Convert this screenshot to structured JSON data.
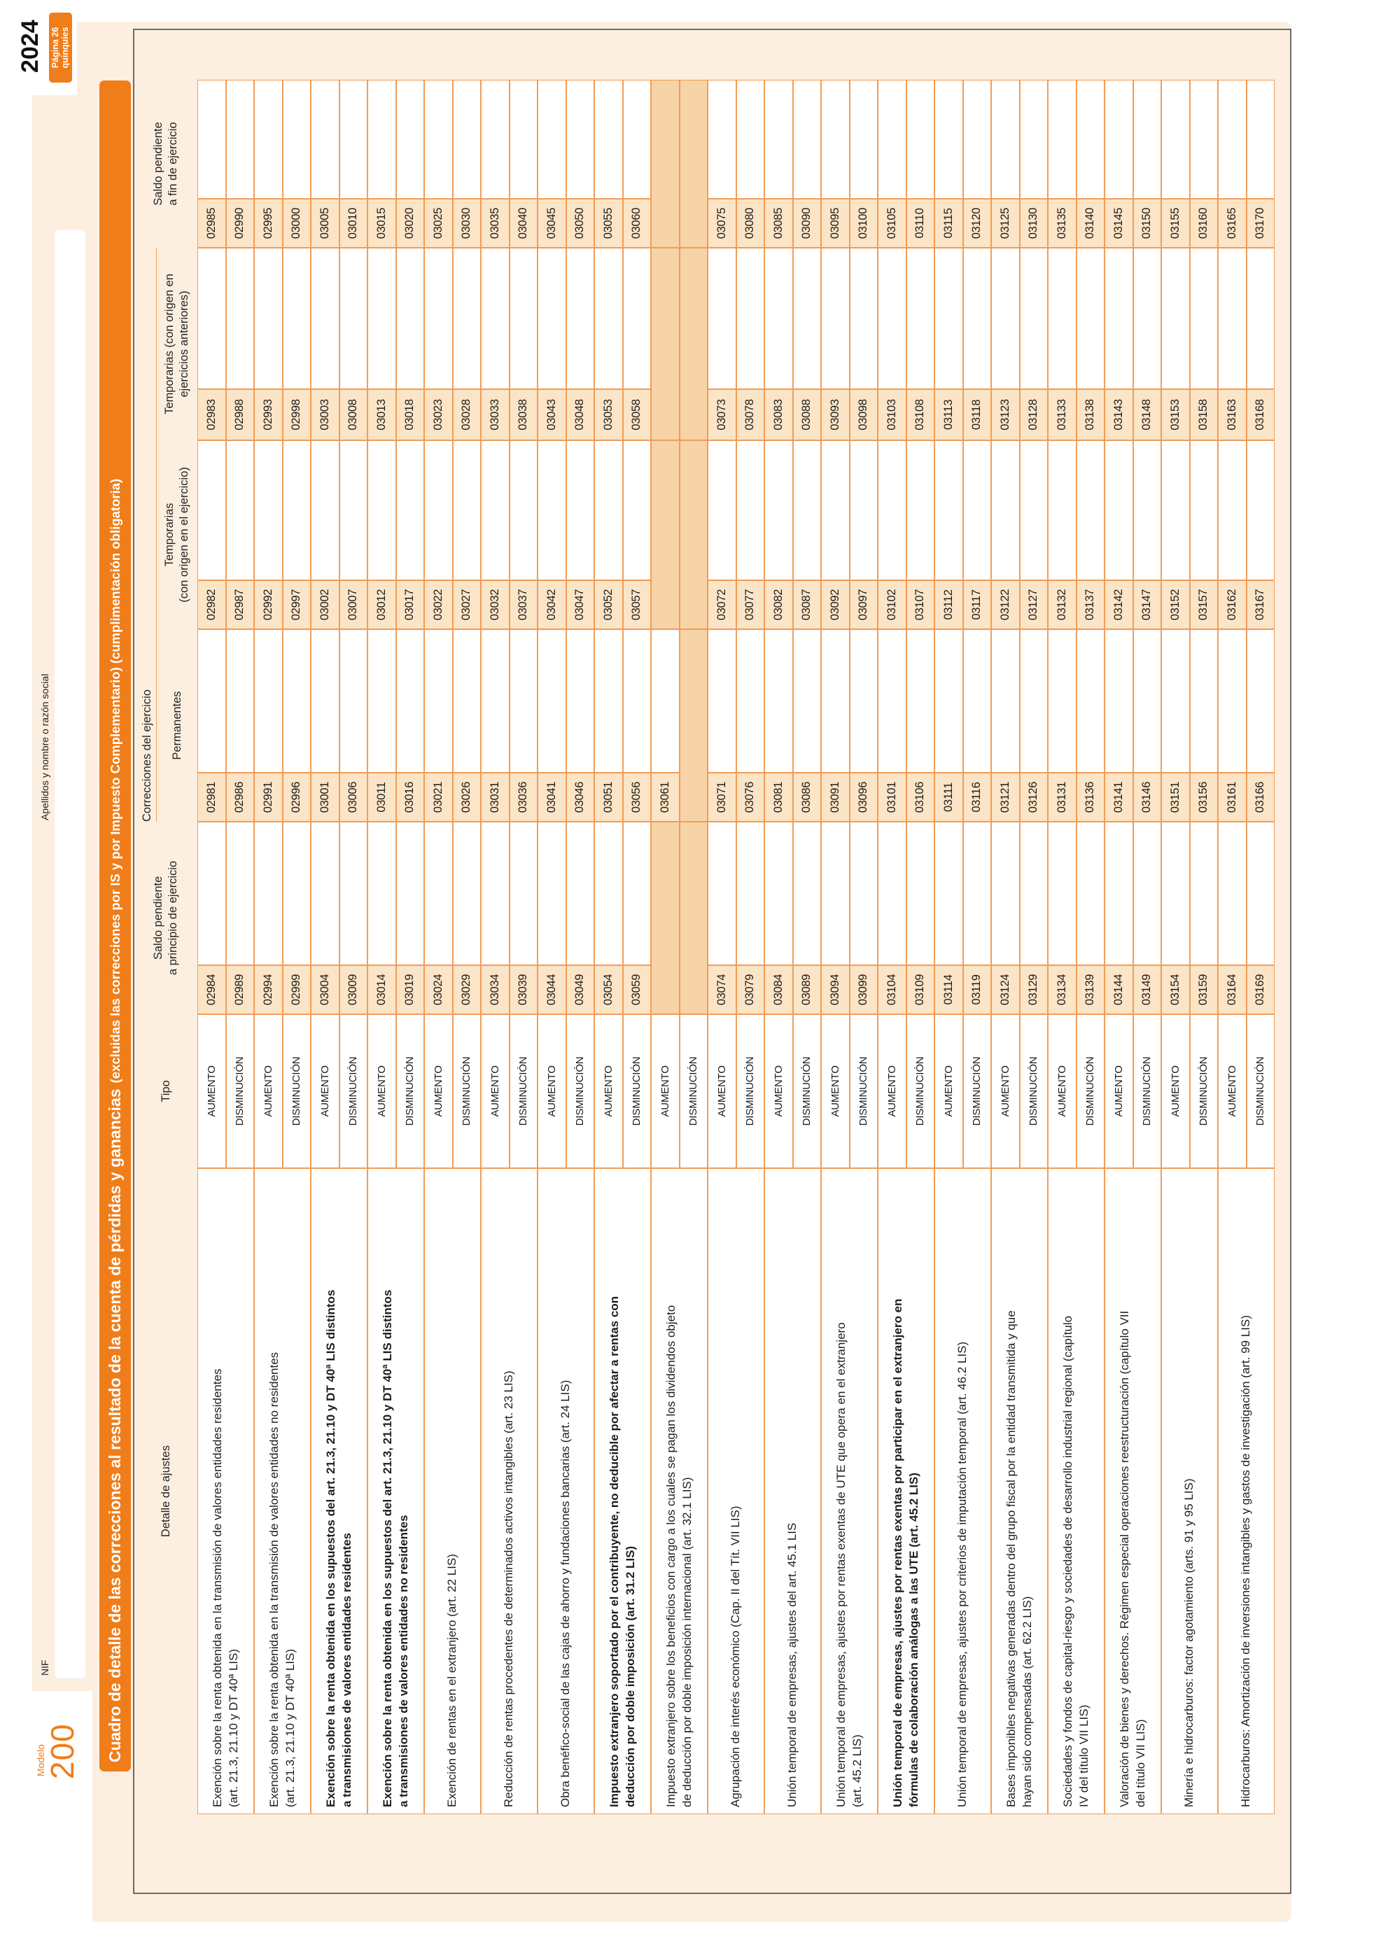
{
  "page": {
    "model_label": "Modelo",
    "model_number": "200",
    "year": "2024",
    "page_badge": "Página 26 quinquies",
    "nif_label": "NIF",
    "name_label": "Apellidos y nombre o razón social"
  },
  "title": {
    "main": "Cuadro de detalle de las correcciones al resultado de la cuenta de pérdidas y ganancias",
    "note": "(excluidas las correcciones por IS y por Impuesto Complementario) (cumplimentación obligatoria)"
  },
  "colors": {
    "accent": "#EF7D1A",
    "grid_line": "#F29C55",
    "panel_cream": "#FCEFE0",
    "code_box_fill": "#FCE4C6",
    "disabled_cell_fill": "#F7D3A8"
  },
  "table": {
    "headers": {
      "detail": "Detalle de ajustes",
      "tipo": "Tipo",
      "saldo_inicio": [
        "Saldo pendiente",
        "a principio de ejercicio"
      ],
      "correcciones_grupo": "Correcciones del ejercicio",
      "permanentes": "Permanentes",
      "temporarias_ejercicio": [
        "Temporarias",
        "(con origen en el ejercicio)"
      ],
      "temporarias_anteriores": [
        "Temporarias (con origen en",
        "ejercicios anteriores)"
      ],
      "saldo_fin": [
        "Saldo pendiente",
        "a fin de ejercicio"
      ]
    },
    "tipo_values": {
      "aumento": "AUMENTO",
      "disminucion": "DISMINUCIÓN"
    },
    "concepts": [
      {
        "label": [
          "Exención sobre la renta obtenida en la transmisión de valores entidades residentes",
          "(art. 21.3, 21.10 y DT 40ª LIS)"
        ],
        "bold": false,
        "aumento": {
          "perm": "02981",
          "temp_ej": "02982",
          "temp_ant": "02983",
          "saldo_ini": "02984",
          "saldo_fin": "02985"
        },
        "disminucion": {
          "perm": "02986",
          "temp_ej": "02987",
          "temp_ant": "02988",
          "saldo_ini": "02989",
          "saldo_fin": "02990"
        }
      },
      {
        "label": [
          "Exención sobre la renta obtenida en la transmisión de valores entidades no residentes",
          "(art. 21.3, 21.10 y DT 40ª LIS)"
        ],
        "bold": false,
        "aumento": {
          "perm": "02991",
          "temp_ej": "02992",
          "temp_ant": "02993",
          "saldo_ini": "02994",
          "saldo_fin": "02995"
        },
        "disminucion": {
          "perm": "02996",
          "temp_ej": "02997",
          "temp_ant": "02998",
          "saldo_ini": "02999",
          "saldo_fin": "03000"
        }
      },
      {
        "label": [
          "Exención sobre la renta obtenida en los supuestos del art. 21.3, 21.10 y DT 40ª LIS distintos",
          "a transmisiones de valores entidades residentes"
        ],
        "bold": true,
        "aumento": {
          "perm": "03001",
          "temp_ej": "03002",
          "temp_ant": "03003",
          "saldo_ini": "03004",
          "saldo_fin": "03005"
        },
        "disminucion": {
          "perm": "03006",
          "temp_ej": "03007",
          "temp_ant": "03008",
          "saldo_ini": "03009",
          "saldo_fin": "03010"
        }
      },
      {
        "label": [
          "Exención sobre la renta obtenida en los supuestos del art. 21.3, 21.10 y DT 40ª LIS distintos",
          "a transmisiones de valores entidades no residentes"
        ],
        "bold": true,
        "aumento": {
          "perm": "03011",
          "temp_ej": "03012",
          "temp_ant": "03013",
          "saldo_ini": "03014",
          "saldo_fin": "03015"
        },
        "disminucion": {
          "perm": "03016",
          "temp_ej": "03017",
          "temp_ant": "03018",
          "saldo_ini": "03019",
          "saldo_fin": "03020"
        }
      },
      {
        "label": [
          "Exención de rentas en el extranjero (art. 22 LIS)"
        ],
        "bold": false,
        "aumento": {
          "perm": "03021",
          "temp_ej": "03022",
          "temp_ant": "03023",
          "saldo_ini": "03024",
          "saldo_fin": "03025"
        },
        "disminucion": {
          "perm": "03026",
          "temp_ej": "03027",
          "temp_ant": "03028",
          "saldo_ini": "03029",
          "saldo_fin": "03030"
        }
      },
      {
        "label": [
          "Reducción de rentas procedentes de determinados activos intangibles (art. 23 LIS)"
        ],
        "bold": false,
        "aumento": {
          "perm": "03031",
          "temp_ej": "03032",
          "temp_ant": "03033",
          "saldo_ini": "03034",
          "saldo_fin": "03035"
        },
        "disminucion": {
          "perm": "03036",
          "temp_ej": "03037",
          "temp_ant": "03038",
          "saldo_ini": "03039",
          "saldo_fin": "03040"
        }
      },
      {
        "label": [
          "Obra benéfico-social de las cajas de ahorro y fundaciones bancarias (art. 24 LIS)"
        ],
        "bold": false,
        "aumento": {
          "perm": "03041",
          "temp_ej": "03042",
          "temp_ant": "03043",
          "saldo_ini": "03044",
          "saldo_fin": "03045"
        },
        "disminucion": {
          "perm": "03046",
          "temp_ej": "03047",
          "temp_ant": "03048",
          "saldo_ini": "03049",
          "saldo_fin": "03050"
        }
      },
      {
        "label": [
          "Impuesto extranjero soportado por el contribuyente, no deducible por afectar a rentas con",
          "deducción por doble imposición (art. 31.2 LIS)"
        ],
        "bold": true,
        "aumento": {
          "perm": "03051",
          "temp_ej": "03052",
          "temp_ant": "03053",
          "saldo_ini": "03054",
          "saldo_fin": "03055"
        },
        "disminucion": {
          "perm": "03056",
          "temp_ej": "03057",
          "temp_ant": "03058",
          "saldo_ini": "03059",
          "saldo_fin": "03060"
        }
      },
      {
        "label": [
          "Impuesto extranjero sobre los beneficios con cargo a los cuales se pagan los dividendos objeto",
          "de deducción por doble imposición internacional (art. 32.1 LIS)"
        ],
        "bold": false,
        "aumento": {
          "perm": "03061",
          "temp_ej": null,
          "temp_ant": null,
          "saldo_ini": null,
          "saldo_fin": null
        },
        "disminucion": {
          "perm": null,
          "temp_ej": null,
          "temp_ant": null,
          "saldo_ini": null,
          "saldo_fin": null
        }
      },
      {
        "label": [
          "Agrupación de interés económico (Cap. II del Tít. VII LIS)"
        ],
        "bold": false,
        "aumento": {
          "perm": "03071",
          "temp_ej": "03072",
          "temp_ant": "03073",
          "saldo_ini": "03074",
          "saldo_fin": "03075"
        },
        "disminucion": {
          "perm": "03076",
          "temp_ej": "03077",
          "temp_ant": "03078",
          "saldo_ini": "03079",
          "saldo_fin": "03080"
        }
      },
      {
        "label": [
          "Unión temporal de empresas, ajustes del art. 45.1 LIS"
        ],
        "bold": false,
        "aumento": {
          "perm": "03081",
          "temp_ej": "03082",
          "temp_ant": "03083",
          "saldo_ini": "03084",
          "saldo_fin": "03085"
        },
        "disminucion": {
          "perm": "03086",
          "temp_ej": "03087",
          "temp_ant": "03088",
          "saldo_ini": "03089",
          "saldo_fin": "03090"
        }
      },
      {
        "label": [
          "Unión temporal de empresas, ajustes por rentas exentas de UTE que opera en el extranjero",
          "(art. 45.2 LIS)"
        ],
        "bold": false,
        "aumento": {
          "perm": "03091",
          "temp_ej": "03092",
          "temp_ant": "03093",
          "saldo_ini": "03094",
          "saldo_fin": "03095"
        },
        "disminucion": {
          "perm": "03096",
          "temp_ej": "03097",
          "temp_ant": "03098",
          "saldo_ini": "03099",
          "saldo_fin": "03100"
        }
      },
      {
        "label": [
          "Unión temporal de empresas, ajustes por rentas exentas por participar en el extranjero en",
          "fórmulas de colaboración análogas a las UTE (art. 45.2 LIS)"
        ],
        "bold": true,
        "aumento": {
          "perm": "03101",
          "temp_ej": "03102",
          "temp_ant": "03103",
          "saldo_ini": "03104",
          "saldo_fin": "03105"
        },
        "disminucion": {
          "perm": "03106",
          "temp_ej": "03107",
          "temp_ant": "03108",
          "saldo_ini": "03109",
          "saldo_fin": "03110"
        }
      },
      {
        "label": [
          "Unión temporal de empresas, ajustes por criterios de imputación temporal (art. 46.2 LIS)"
        ],
        "bold": false,
        "aumento": {
          "perm": "03111",
          "temp_ej": "03112",
          "temp_ant": "03113",
          "saldo_ini": "03114",
          "saldo_fin": "03115"
        },
        "disminucion": {
          "perm": "03116",
          "temp_ej": "03117",
          "temp_ant": "03118",
          "saldo_ini": "03119",
          "saldo_fin": "03120"
        }
      },
      {
        "label": [
          "Bases imponibles negativas generadas dentro del grupo fiscal por la entidad transmitida y que",
          "hayan sido compensadas (art. 62.2 LIS)"
        ],
        "bold": false,
        "aumento": {
          "perm": "03121",
          "temp_ej": "03122",
          "temp_ant": "03123",
          "saldo_ini": "03124",
          "saldo_fin": "03125"
        },
        "disminucion": {
          "perm": "03126",
          "temp_ej": "03127",
          "temp_ant": "03128",
          "saldo_ini": "03129",
          "saldo_fin": "03130"
        }
      },
      {
        "label": [
          "Sociedades y fondos de capital-riesgo y sociedades de desarrollo industrial regional (capítulo",
          "IV del título VII LIS)"
        ],
        "bold": false,
        "aumento": {
          "perm": "03131",
          "temp_ej": "03132",
          "temp_ant": "03133",
          "saldo_ini": "03134",
          "saldo_fin": "03135"
        },
        "disminucion": {
          "perm": "03136",
          "temp_ej": "03137",
          "temp_ant": "03138",
          "saldo_ini": "03139",
          "saldo_fin": "03140"
        }
      },
      {
        "label": [
          "Valoración de bienes y derechos. Régimen especial operaciones reestructuración (capítulo VII",
          "del título VII LIS)"
        ],
        "bold": false,
        "aumento": {
          "perm": "03141",
          "temp_ej": "03142",
          "temp_ant": "03143",
          "saldo_ini": "03144",
          "saldo_fin": "03145"
        },
        "disminucion": {
          "perm": "03146",
          "temp_ej": "03147",
          "temp_ant": "03148",
          "saldo_ini": "03149",
          "saldo_fin": "03150"
        }
      },
      {
        "label": [
          "Minería e hidrocarburos: factor agotamiento (arts. 91 y 95 LIS)"
        ],
        "bold": false,
        "aumento": {
          "perm": "03151",
          "temp_ej": "03152",
          "temp_ant": "03153",
          "saldo_ini": "03154",
          "saldo_fin": "03155"
        },
        "disminucion": {
          "perm": "03156",
          "temp_ej": "03157",
          "temp_ant": "03158",
          "saldo_ini": "03159",
          "saldo_fin": "03160"
        }
      },
      {
        "label": [
          "Hidrocarburos: Amortización de inversiones intangibles y gastos de investigación (art. 99 LIS)"
        ],
        "bold": false,
        "aumento": {
          "perm": "03161",
          "temp_ej": "03162",
          "temp_ant": "03163",
          "saldo_ini": "03164",
          "saldo_fin": "03165"
        },
        "disminucion": {
          "perm": "03166",
          "temp_ej": "03167",
          "temp_ant": "03168",
          "saldo_ini": "03169",
          "saldo_fin": "03170"
        }
      }
    ]
  }
}
